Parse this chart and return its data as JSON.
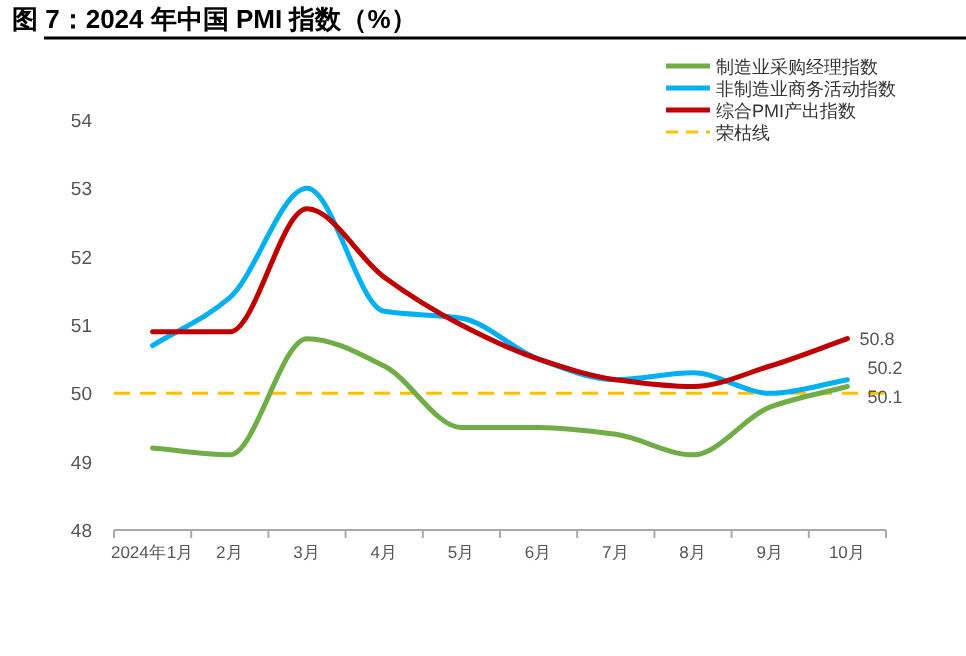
{
  "chart_data": {
    "type": "line",
    "title": "图 7：2024 年中国 PMI 指数（%）",
    "categories": [
      "2024年1月",
      "2月",
      "3月",
      "4月",
      "5月",
      "6月",
      "7月",
      "8月",
      "9月",
      "10月"
    ],
    "series": [
      {
        "name": "制造业采购经理指数",
        "color": "#70ad47",
        "values": [
          49.2,
          49.1,
          50.8,
          50.4,
          49.5,
          49.5,
          49.4,
          49.1,
          49.8,
          50.1
        ],
        "value_labels": [
          null,
          null,
          null,
          null,
          null,
          null,
          null,
          null,
          null,
          "50.1"
        ]
      },
      {
        "name": "非制造业商务活动指数",
        "color": "#00b0f0",
        "values": [
          50.7,
          51.4,
          53.0,
          51.2,
          51.1,
          50.5,
          50.2,
          50.3,
          50.0,
          50.2
        ],
        "value_labels": [
          null,
          null,
          null,
          null,
          null,
          null,
          null,
          null,
          null,
          "50.2"
        ]
      },
      {
        "name": "综合PMI产出指数",
        "color": "#c00000",
        "values": [
          50.9,
          50.9,
          52.7,
          51.7,
          51.0,
          50.5,
          50.2,
          50.1,
          50.4,
          50.8
        ],
        "value_labels": [
          null,
          null,
          null,
          null,
          null,
          null,
          null,
          null,
          null,
          "50.8"
        ]
      }
    ],
    "ref_lines": [
      {
        "axis": "y",
        "value": 50,
        "label": "荣枯线",
        "color": "#ffc000",
        "line_style": "dashed"
      }
    ],
    "ylim": [
      48,
      54
    ],
    "yticks": [
      48,
      49,
      50,
      51,
      52,
      53,
      54
    ],
    "grid": false,
    "legend": "top right",
    "marker": "none",
    "line_style": "solid"
  }
}
